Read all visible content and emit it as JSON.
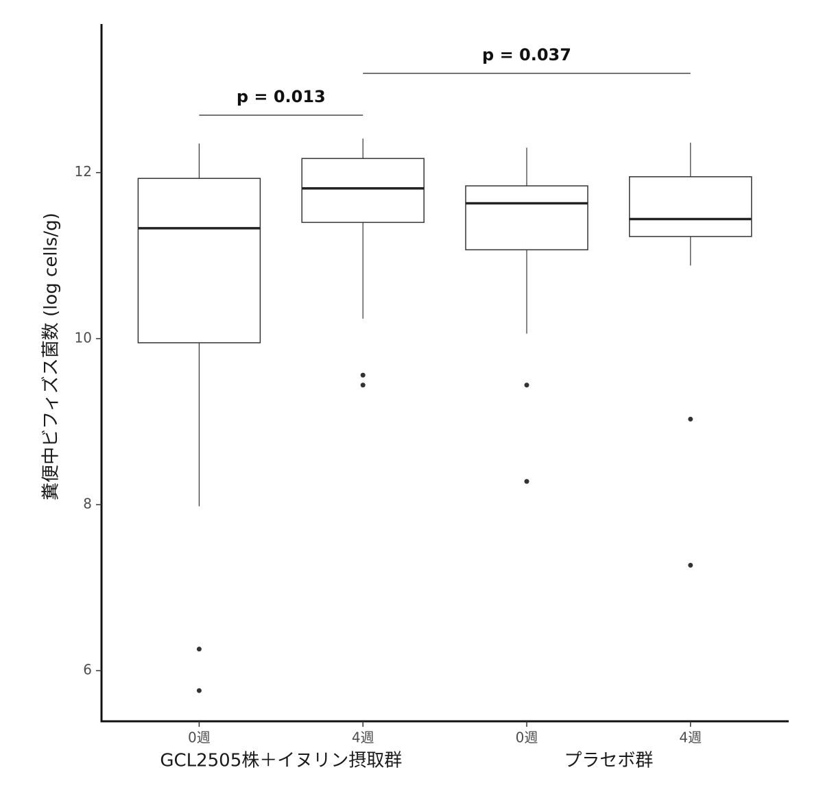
{
  "chart_data": {
    "type": "box",
    "y_label": "糞便中ビフィズス菌数 (log cells/g)",
    "categories": [
      "0週",
      "4週",
      "0週",
      "4週"
    ],
    "groups": [
      "GCL2505株＋イヌリン摂取群",
      "プラセボ群"
    ],
    "boxes": [
      {
        "min": 7.98,
        "q1": 9.95,
        "median": 11.33,
        "q3": 11.93,
        "max": 12.35,
        "outliers": [
          6.26,
          5.76
        ]
      },
      {
        "min": 10.24,
        "q1": 11.4,
        "median": 11.81,
        "q3": 12.17,
        "max": 12.41,
        "outliers": [
          9.56,
          9.44
        ]
      },
      {
        "min": 10.06,
        "q1": 11.07,
        "median": 11.63,
        "q3": 11.84,
        "max": 12.3,
        "outliers": [
          9.44,
          8.28
        ]
      },
      {
        "min": 10.88,
        "q1": 11.23,
        "median": 11.44,
        "q3": 11.95,
        "max": 12.36,
        "outliers": [
          9.03,
          7.27
        ]
      }
    ],
    "annotations": [
      "p = 0.013",
      "p = 0.037"
    ],
    "ylim": [
      5.39,
      13.79
    ],
    "yticks": [
      6,
      8,
      10,
      12
    ],
    "color": "#333333"
  }
}
